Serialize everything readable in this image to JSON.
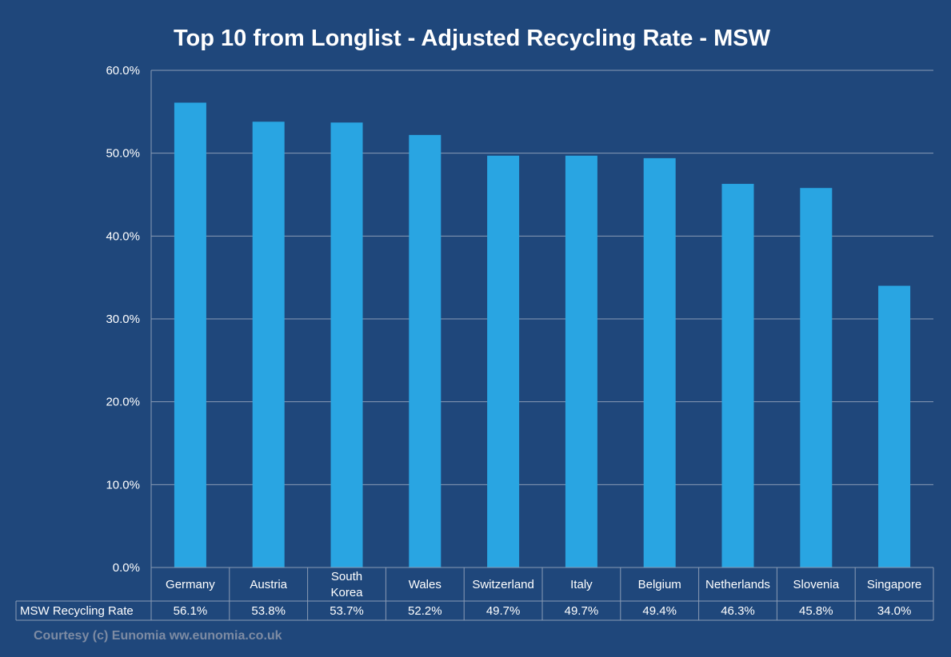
{
  "chart_data": {
    "type": "bar",
    "title": "Top 10 from Longlist - Adjusted Recycling Rate - MSW",
    "categories": [
      "Germany",
      "Austria",
      "South Korea",
      "Wales",
      "Switzerland",
      "Italy",
      "Belgium",
      "Netherlands",
      "Slovenia",
      "Singapore"
    ],
    "category_lines": [
      [
        "Germany"
      ],
      [
        "Austria"
      ],
      [
        "South",
        "Korea"
      ],
      [
        "Wales"
      ],
      [
        "Switzerland"
      ],
      [
        "Italy"
      ],
      [
        "Belgium"
      ],
      [
        "Netherlands"
      ],
      [
        "Slovenia"
      ],
      [
        "Singapore"
      ]
    ],
    "series": [
      {
        "name": "MSW Recycling Rate",
        "values": [
          56.1,
          53.8,
          53.7,
          52.2,
          49.7,
          49.7,
          49.4,
          46.3,
          45.8,
          34.0
        ],
        "labels": [
          "56.1%",
          "53.8%",
          "53.7%",
          "52.2%",
          "49.7%",
          "49.7%",
          "49.4%",
          "46.3%",
          "45.8%",
          "34.0%"
        ]
      }
    ],
    "ylim": [
      0,
      60
    ],
    "yticks": [
      0,
      10,
      20,
      30,
      40,
      50,
      60
    ],
    "ytick_labels": [
      "0.0%",
      "10.0%",
      "20.0%",
      "30.0%",
      "40.0%",
      "50.0%",
      "60.0%"
    ],
    "grid": true,
    "data_table": true
  },
  "colors": {
    "background": "#1f477b",
    "bar": "#29a5e2",
    "grid": "#8a9bb5",
    "text": "#ffffff",
    "courtesy": "#7d8ba3"
  },
  "footer": {
    "courtesy": "Courtesy (c) Eunomia ww.eunomia.co.uk"
  }
}
